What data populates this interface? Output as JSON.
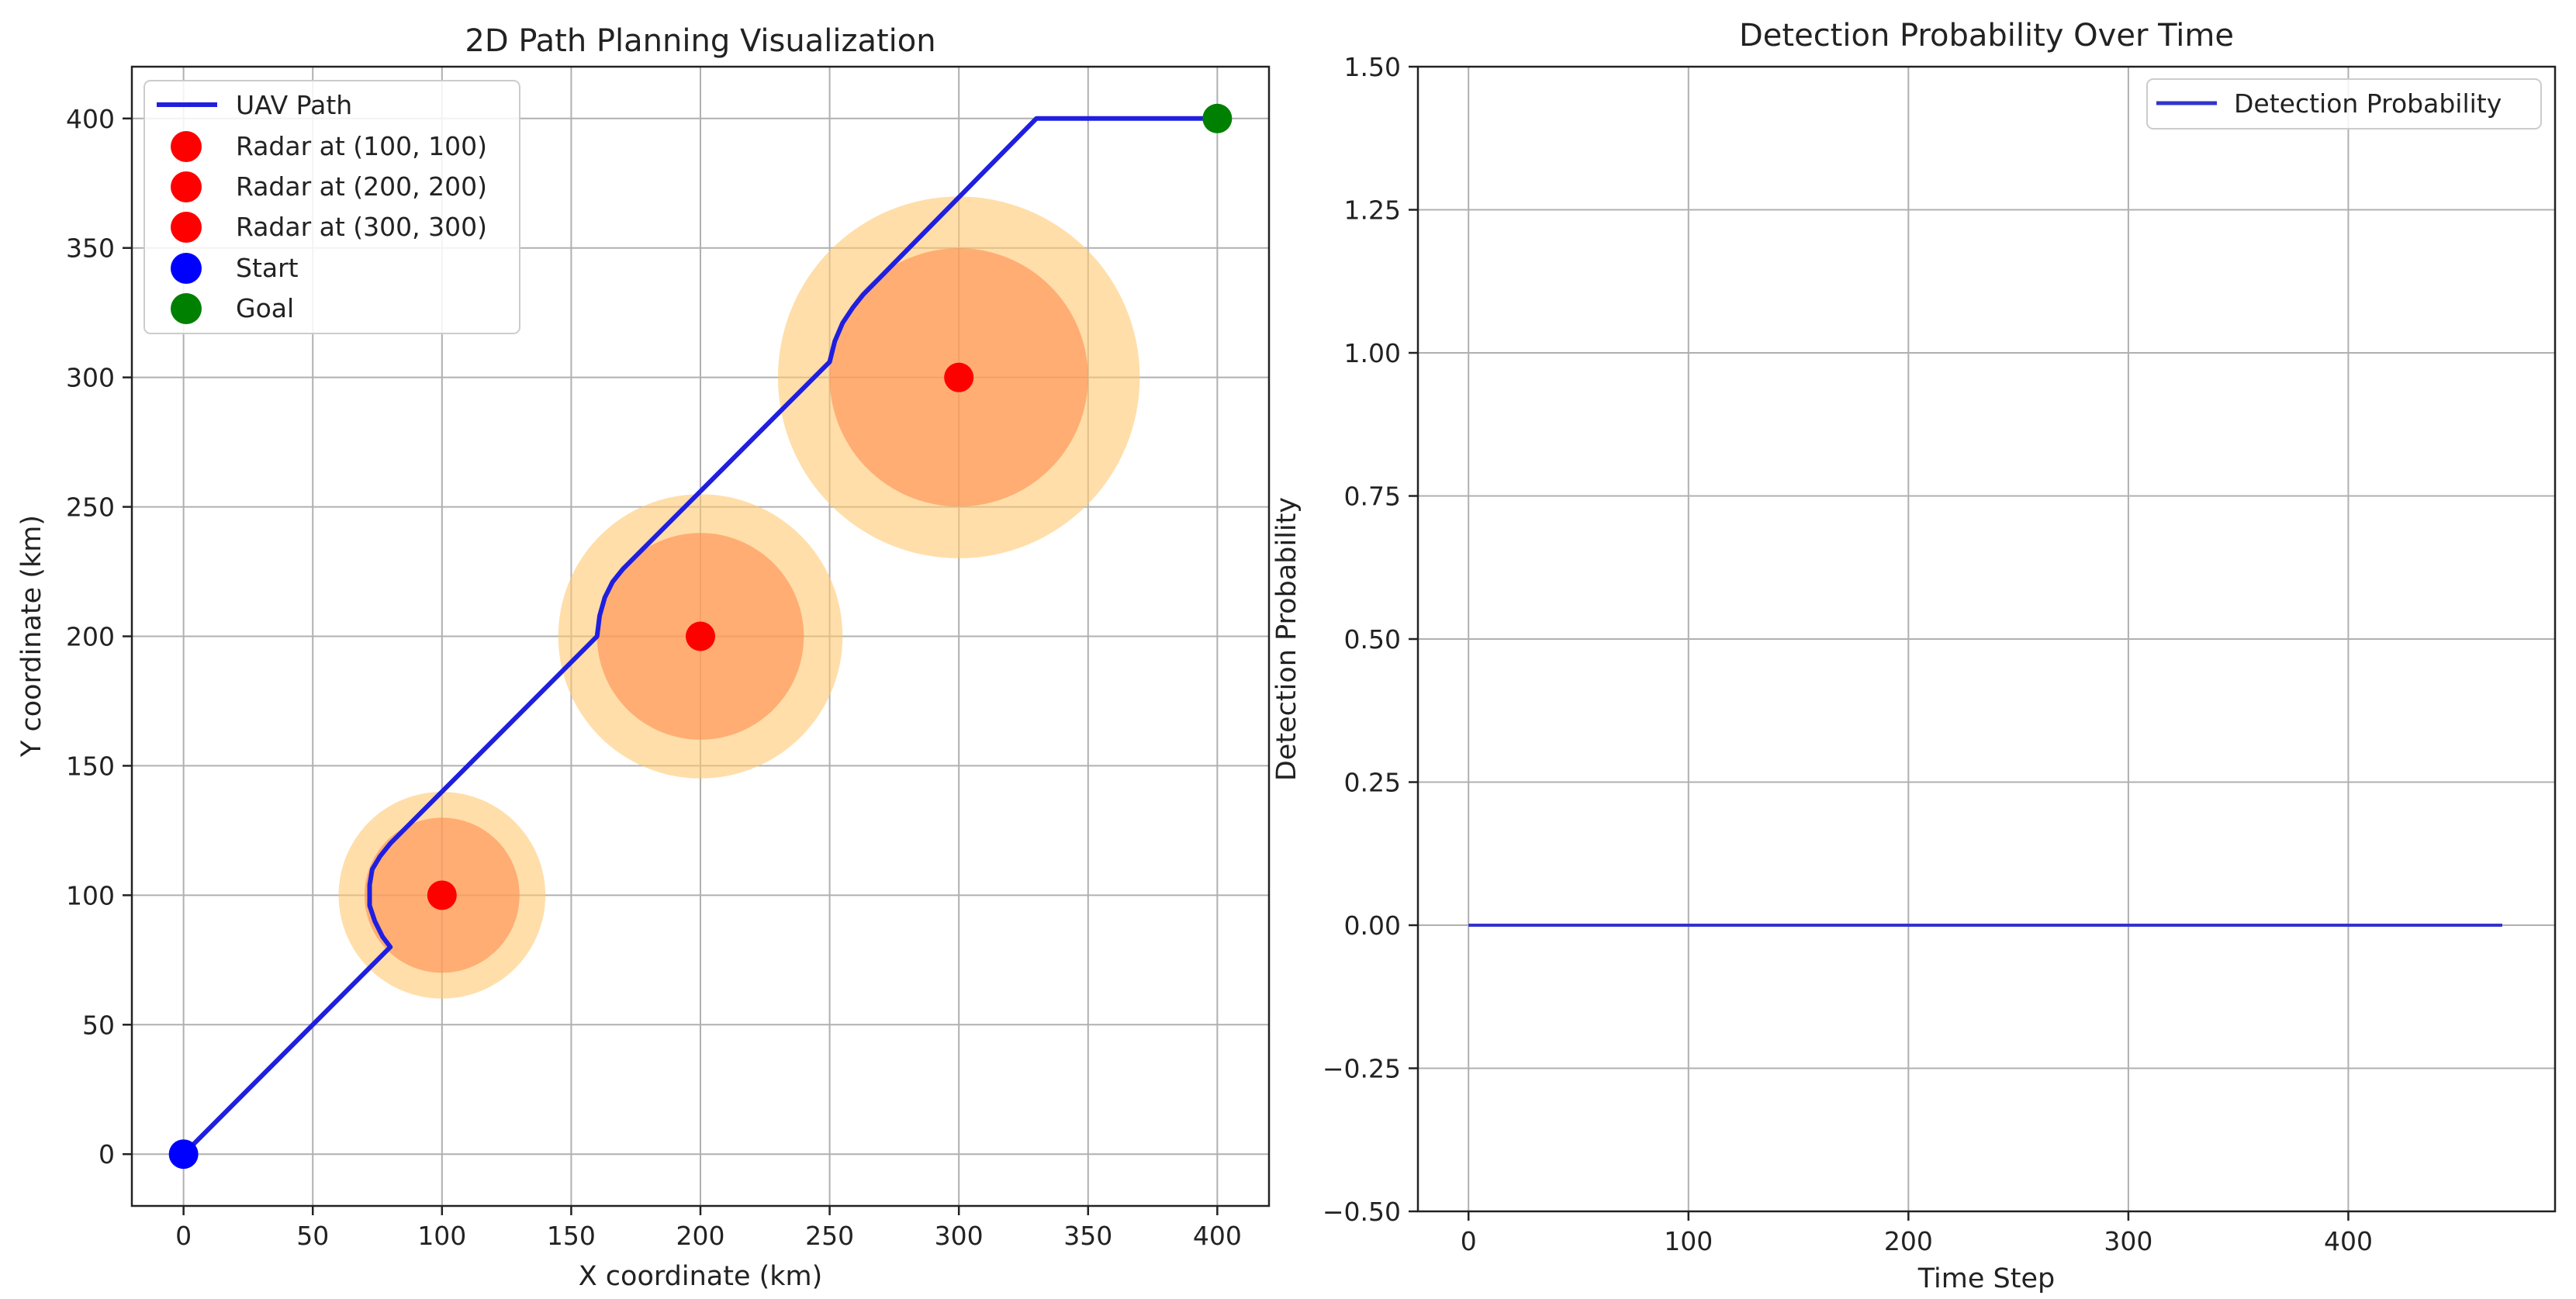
{
  "chart_data": [
    {
      "type": "scatter",
      "title": "2D Path Planning Visualization",
      "xlabel": "X coordinate (km)",
      "ylabel": "Y coordinate (km)",
      "xlim": [
        -20,
        420
      ],
      "ylim": [
        -20,
        420
      ],
      "xticks": [
        0,
        50,
        100,
        150,
        200,
        250,
        300,
        350,
        400
      ],
      "yticks": [
        0,
        50,
        100,
        150,
        200,
        250,
        300,
        350,
        400
      ],
      "grid": true,
      "legend_position": "upper-left",
      "series": [
        {
          "name": "UAV Path",
          "kind": "line",
          "color": "#1f1fe0",
          "points": [
            [
              0,
              0
            ],
            [
              80,
              80
            ],
            [
              77,
              84
            ],
            [
              74,
              90
            ],
            [
              72,
              96
            ],
            [
              72,
              100
            ],
            [
              72,
              104
            ],
            [
              73,
              110
            ],
            [
              76,
              115
            ],
            [
              80,
              120
            ],
            [
              160,
              200
            ],
            [
              161,
              208
            ],
            [
              163,
              215
            ],
            [
              166,
              221
            ],
            [
              170,
              226
            ],
            [
              250,
              306
            ],
            [
              252,
              314
            ],
            [
              255,
              321
            ],
            [
              259,
              327
            ],
            [
              263,
              332
            ],
            [
              330,
              400
            ],
            [
              400,
              400
            ]
          ]
        },
        {
          "name": "Radar at (100, 100)",
          "kind": "marker",
          "color": "#ff0000",
          "points": [
            [
              100,
              100
            ]
          ]
        },
        {
          "name": "Radar at (200, 200)",
          "kind": "marker",
          "color": "#ff0000",
          "points": [
            [
              200,
              200
            ]
          ]
        },
        {
          "name": "Radar at (300, 300)",
          "kind": "marker",
          "color": "#ff0000",
          "points": [
            [
              300,
              300
            ]
          ]
        },
        {
          "name": "Start",
          "kind": "marker",
          "color": "#0000ff",
          "points": [
            [
              0,
              0
            ]
          ]
        },
        {
          "name": "Goal",
          "kind": "marker",
          "color": "#008000",
          "points": [
            [
              400,
              400
            ]
          ]
        }
      ],
      "radar_zones": [
        {
          "center": [
            100,
            100
          ],
          "outer_radius": 40,
          "inner_radius": 30
        },
        {
          "center": [
            200,
            200
          ],
          "outer_radius": 55,
          "inner_radius": 40
        },
        {
          "center": [
            300,
            300
          ],
          "outer_radius": 70,
          "inner_radius": 50
        }
      ],
      "zone_colors": {
        "outer": "#ffc870",
        "inner": "#ff8c50"
      }
    },
    {
      "type": "line",
      "title": "Detection Probability Over Time",
      "xlabel": "Time Step",
      "ylabel": "Detection Probability",
      "xlim": [
        -23,
        494
      ],
      "ylim": [
        -0.5,
        1.5
      ],
      "xticks": [
        0,
        100,
        200,
        300,
        400
      ],
      "yticks": [
        -0.5,
        -0.25,
        0.0,
        0.25,
        0.5,
        0.75,
        1.0,
        1.25,
        1.5
      ],
      "ytick_labels": [
        "−0.50",
        "−0.25",
        "0.00",
        "0.25",
        "0.50",
        "0.75",
        "1.00",
        "1.25",
        "1.50"
      ],
      "grid": true,
      "legend_position": "upper-right",
      "series": [
        {
          "name": "Detection Probability",
          "color": "#3333cc",
          "x": [
            0,
            470
          ],
          "y": [
            0,
            0
          ]
        }
      ]
    }
  ]
}
